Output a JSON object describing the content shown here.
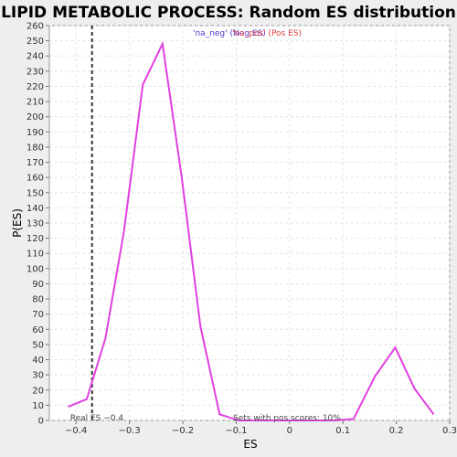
{
  "chart_data": {
    "type": "line",
    "title": "LIPID METABOLIC PROCESS: Random ES distribution",
    "xlabel": "ES",
    "ylabel": "P(ES)",
    "xlim": [
      -0.45,
      0.3
    ],
    "ylim": [
      0,
      260
    ],
    "x_ticks": [
      -0.4,
      -0.3,
      -0.2,
      -0.1,
      0,
      0.1,
      0.2,
      0.3
    ],
    "x_tick_labels": [
      "−0.4",
      "−0.3",
      "−0.2",
      "−0.1",
      "0",
      "0.1",
      "0.2",
      "0.3"
    ],
    "y_ticks": [
      0,
      10,
      20,
      30,
      40,
      50,
      60,
      70,
      80,
      90,
      100,
      110,
      120,
      130,
      140,
      150,
      160,
      170,
      180,
      190,
      200,
      210,
      220,
      230,
      240,
      250,
      260
    ],
    "grid": true,
    "series": [
      {
        "color": "#e040e0",
        "x": [
          -0.415,
          -0.38,
          -0.345,
          -0.31,
          -0.275,
          -0.238,
          -0.202,
          -0.167,
          -0.131,
          -0.095,
          -0.059,
          -0.024,
          0.012,
          0.048,
          0.084,
          0.12,
          0.16,
          0.198,
          0.234,
          0.27
        ],
        "y": [
          9,
          14,
          54,
          125,
          221,
          248,
          160,
          62,
          4,
          0,
          0,
          0,
          0,
          0,
          0,
          1,
          29,
          48,
          21,
          4
        ]
      }
    ],
    "real_es": {
      "value": -0.37,
      "label": "Real ES −0.4",
      "color": "#333333"
    },
    "legend": {
      "placement": "top-center",
      "neg_label": "'na_neg' (Neg ES)",
      "pos_label": "'na_pos' (Pos ES)",
      "neg_color": "#5533cc",
      "pos_color": "#e04040"
    },
    "annotation": "Sets with pos scores: 10%"
  }
}
